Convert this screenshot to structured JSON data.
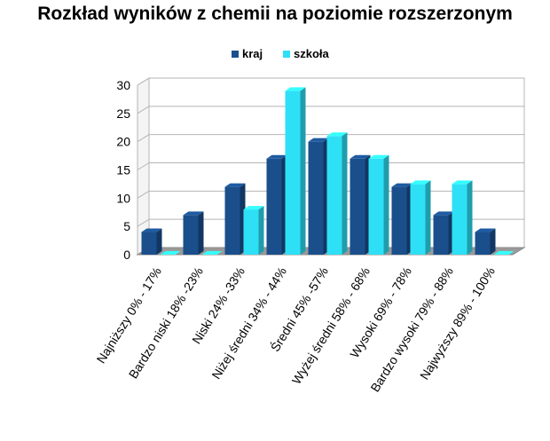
{
  "chart_data": {
    "type": "bar",
    "title": "Rozkład wyników z chemii na poziomie rozszerzonym",
    "xlabel": "",
    "ylabel": "",
    "categories": [
      "Najniższy 0% - 17%",
      "Bardzo niski 18% -23%",
      "Niski 24% -33%",
      "Niżej średni 34% - 44%",
      "Średni 45% -57%",
      "Wyżej średni 58% - 68%",
      "Wysoki 69% - 78%",
      "Bardzo wysoki 79% - 88%",
      "Najwyższy 89% - 100%"
    ],
    "series": [
      {
        "name": "kraj",
        "color": "#1a4f8c",
        "values": [
          4,
          7,
          12,
          17,
          20,
          17,
          12,
          7,
          4
        ]
      },
      {
        "name": "szkoła",
        "color": "#2ee0f5",
        "values": [
          0,
          0,
          8,
          29,
          21,
          17,
          12.5,
          12.5,
          0
        ]
      }
    ],
    "ylim": [
      0,
      30
    ],
    "yticks": [
      0,
      5,
      10,
      15,
      20,
      25,
      30
    ],
    "grid": true,
    "legend": "top",
    "style": "3d-clustered-column"
  }
}
